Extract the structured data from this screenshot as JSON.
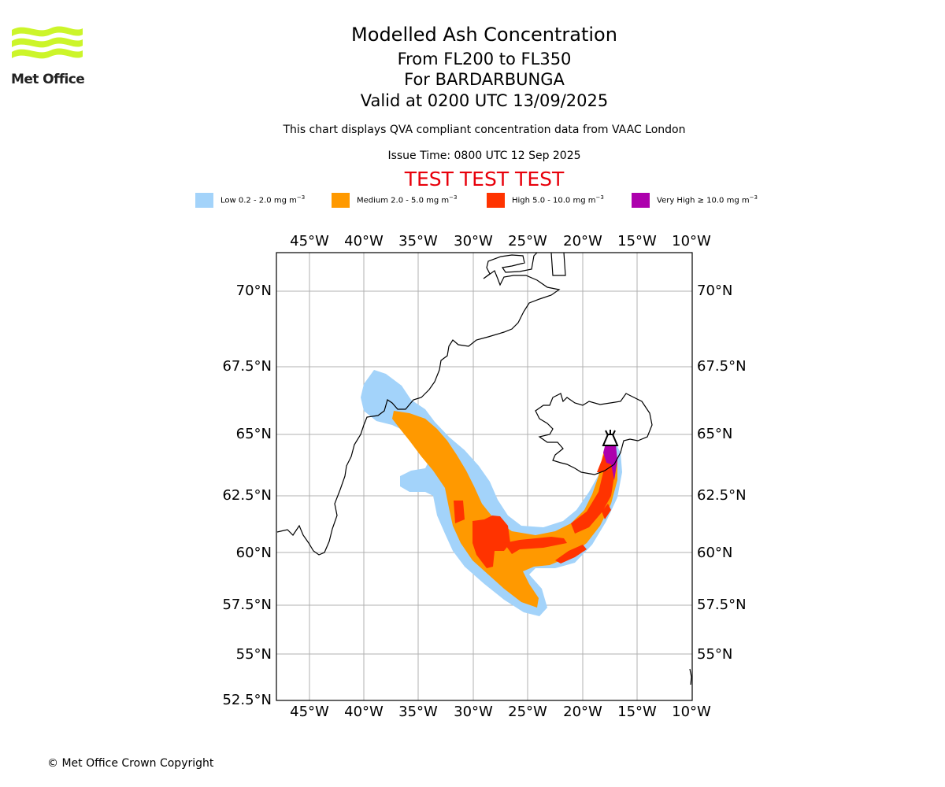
{
  "header": {
    "title": "Modelled Ash Concentration",
    "levels": "From FL200 to FL350",
    "volcano": "For BARDARBUNGA",
    "valid": "Valid at 0200 UTC 13/09/2025",
    "description": "This chart displays QVA compliant concentration data from VAAC London",
    "issue_time": "Issue Time: 0800 UTC 12 Sep 2025",
    "test_banner": "TEST TEST TEST"
  },
  "logo": {
    "text": "Met Office",
    "color": "#ccf52a"
  },
  "legend": [
    {
      "label": "Low 0.2 - 2.0 mg m",
      "exp": "−3",
      "color": "#a3d3fa"
    },
    {
      "label": "Medium 2.0 - 5.0 mg m",
      "exp": "−3",
      "color": "#ff9900"
    },
    {
      "label": "High 5.0 - 10.0 mg m",
      "exp": "−3",
      "color": "#ff3300"
    },
    {
      "label": "Very High  ≥  10.0 mg m",
      "exp": "−3",
      "color": "#ad00ad"
    }
  ],
  "map": {
    "lon_ticks": [
      "45°W",
      "40°W",
      "35°W",
      "30°W",
      "25°W",
      "20°W",
      "15°W",
      "10°W"
    ],
    "lat_ticks": [
      "70°N",
      "67.5°N",
      "65°N",
      "62.5°N",
      "60°N",
      "57.5°N",
      "55°N",
      "52.5°N"
    ],
    "lat_ticks_right": [
      "70°N",
      "67.5°N",
      "65°N",
      "62.5°N",
      "60°N",
      "57.5°N",
      "55°N"
    ],
    "volcano_icon": "volcano-icon",
    "coastline_color": "#000000",
    "grid_color": "#b0b0b0"
  },
  "footer": {
    "copyright": "© Met Office Crown Copyright"
  }
}
